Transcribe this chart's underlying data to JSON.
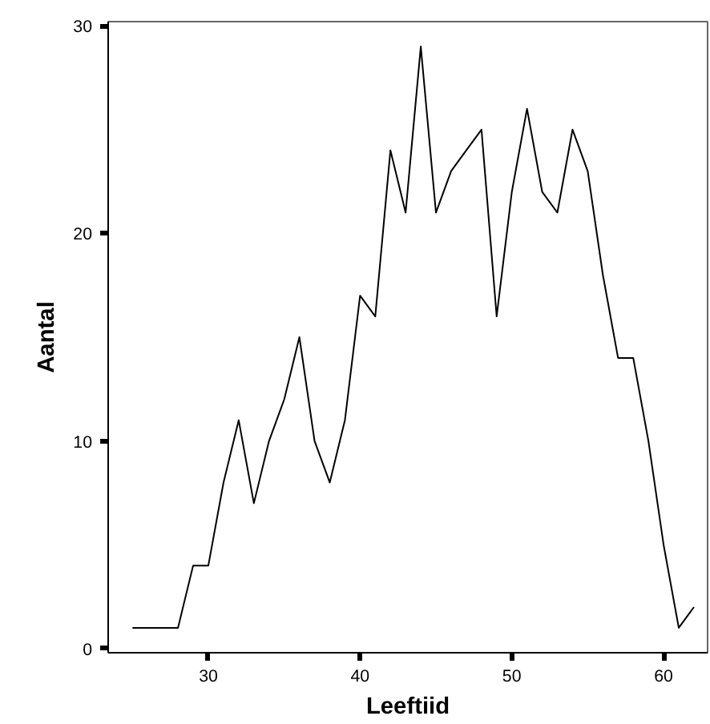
{
  "chart_data": {
    "type": "line",
    "xlabel": "Leeftiid",
    "ylabel": "Aantal",
    "x": [
      25,
      26,
      27,
      28,
      29,
      30,
      31,
      32,
      33,
      34,
      35,
      36,
      37,
      38,
      39,
      40,
      41,
      42,
      43,
      44,
      45,
      46,
      47,
      48,
      49,
      50,
      51,
      52,
      53,
      54,
      55,
      56,
      57,
      58,
      59,
      60,
      61,
      62
    ],
    "series": [
      {
        "color": "#000000",
        "values": [
          1,
          1,
          1,
          1,
          4,
          4,
          8,
          11,
          7,
          10,
          12,
          15,
          10,
          8,
          11,
          17,
          16,
          24,
          21,
          29,
          21,
          23,
          24,
          25,
          16,
          22,
          26,
          22,
          21,
          25,
          23,
          18,
          14,
          14,
          10,
          5,
          1,
          2
        ]
      }
    ],
    "xlim": [
      23.4,
      62.9
    ],
    "ylim": [
      -0.2,
      30.2
    ],
    "xticks": [
      30,
      40,
      50,
      60
    ],
    "yticks": [
      0,
      10,
      20,
      30
    ],
    "grid": false
  }
}
